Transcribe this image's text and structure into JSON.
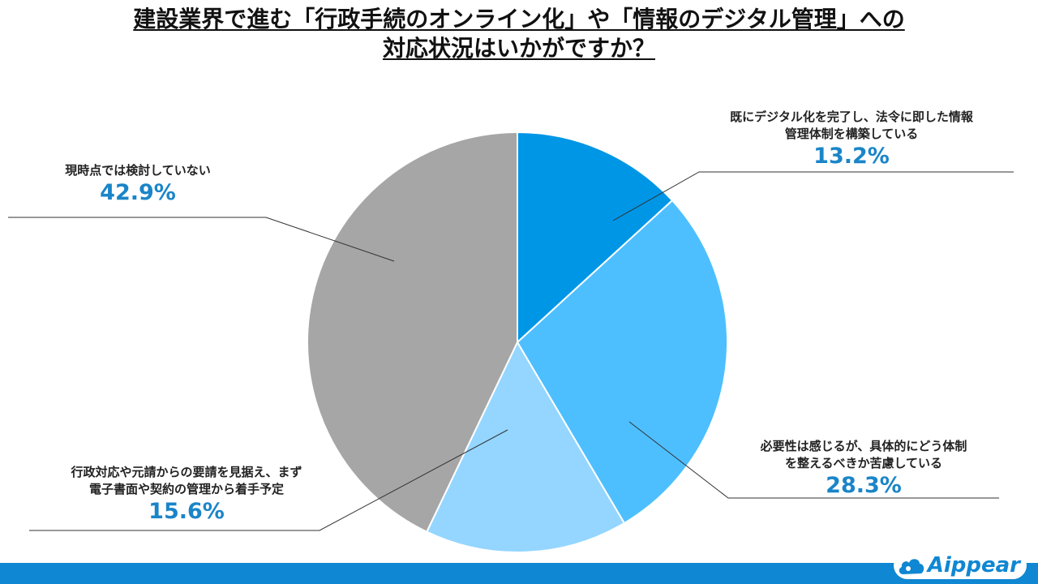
{
  "title": {
    "line1": "建設業界で進む「行政手続のオンライン化」や「情報のデジタル管理」への",
    "line2": "対応状況はいかがですか？"
  },
  "colors": {
    "slice1": "#0096e6",
    "slice2": "#4dbfff",
    "slice3": "#94d6ff",
    "slice4": "#a6a6a6",
    "percent": "#1a85c8",
    "footer": "#0f87d2"
  },
  "chart_data": {
    "type": "pie",
    "title": "建設業界で進む「行政手続のオンライン化」や「情報のデジタル管理」への対応状況はいかがですか？",
    "slices": [
      {
        "label": "既にデジタル化を完了し、法令に即した情報\n管理体制を構築している",
        "value": 13.2,
        "display": "13.2%"
      },
      {
        "label": "必要性は感じるが、具体的にどう体制\nを整えるべきか苦慮している",
        "value": 28.3,
        "display": "28.3%"
      },
      {
        "label": "行政対応や元請からの要請を見据え、まず\n電子書面や契約の管理から着手予定",
        "value": 15.6,
        "display": "15.6%"
      },
      {
        "label": "現時点では検討していない",
        "value": 42.9,
        "display": "42.9%"
      }
    ]
  },
  "footer": {
    "brand": "Aippear",
    "icon": "cloud-icon"
  }
}
